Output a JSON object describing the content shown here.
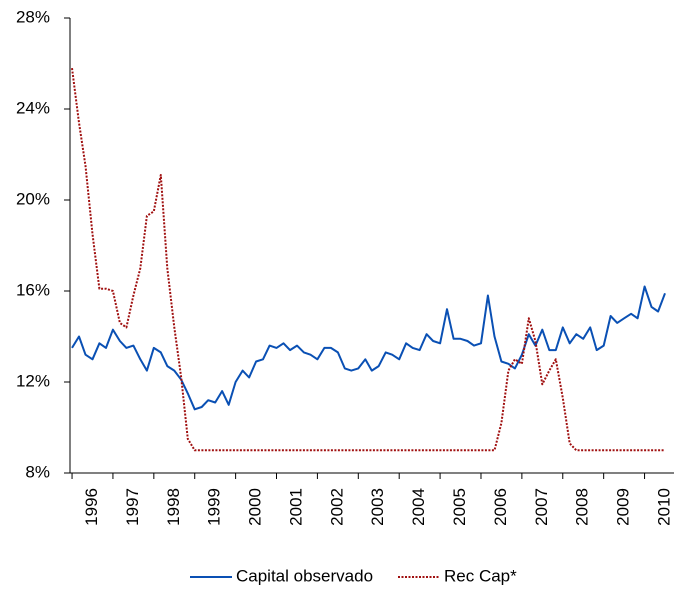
{
  "chart_data": {
    "type": "line",
    "x": [
      1996,
      1996.17,
      1996.33,
      1996.5,
      1996.67,
      1996.83,
      1997,
      1997.17,
      1997.33,
      1997.5,
      1997.67,
      1997.83,
      1998,
      1998.17,
      1998.33,
      1998.5,
      1998.67,
      1998.83,
      1999,
      1999.17,
      1999.33,
      1999.5,
      1999.67,
      1999.83,
      2000,
      2000.17,
      2000.33,
      2000.5,
      2000.67,
      2000.83,
      2001,
      2001.17,
      2001.33,
      2001.5,
      2001.67,
      2001.83,
      2002,
      2002.17,
      2002.33,
      2002.5,
      2002.67,
      2002.83,
      2003,
      2003.17,
      2003.33,
      2003.5,
      2003.67,
      2003.83,
      2004,
      2004.17,
      2004.33,
      2004.5,
      2004.67,
      2004.83,
      2005,
      2005.17,
      2005.33,
      2005.5,
      2005.67,
      2005.83,
      2006,
      2006.17,
      2006.33,
      2006.5,
      2006.67,
      2006.83,
      2007,
      2007.17,
      2007.33,
      2007.5,
      2007.67,
      2007.83,
      2008,
      2008.17,
      2008.33,
      2008.5,
      2008.67,
      2008.83,
      2009,
      2009.17,
      2009.33,
      2009.5,
      2009.67,
      2009.83,
      2010,
      2010.17,
      2010.33,
      2010.5
    ],
    "series": [
      {
        "name": "Capital observado",
        "color": "#0a50b4",
        "dash": false,
        "values": [
          13.5,
          14.0,
          13.2,
          13.0,
          13.7,
          13.5,
          14.3,
          13.8,
          13.5,
          13.6,
          13.0,
          12.5,
          13.5,
          13.3,
          12.7,
          12.5,
          12.1,
          11.5,
          10.8,
          10.9,
          11.2,
          11.1,
          11.6,
          11.0,
          12.0,
          12.5,
          12.2,
          12.9,
          13.0,
          13.6,
          13.5,
          13.7,
          13.4,
          13.6,
          13.3,
          13.2,
          13.0,
          13.5,
          13.5,
          13.3,
          12.6,
          12.5,
          12.6,
          13.0,
          12.5,
          12.7,
          13.3,
          13.2,
          13.0,
          13.7,
          13.5,
          13.4,
          14.1,
          13.8,
          13.7,
          15.2,
          13.9,
          13.9,
          13.8,
          13.6,
          13.7,
          15.8,
          14.0,
          12.9,
          12.8,
          12.6,
          13.2,
          14.1,
          13.6,
          14.3,
          13.4,
          13.4,
          14.4,
          13.7,
          14.1,
          13.9,
          14.4,
          13.4,
          13.6,
          14.9,
          14.6,
          14.8,
          15.0,
          14.8,
          16.2,
          15.3,
          15.1,
          15.9
        ]
      },
      {
        "name": "Rec Cap*",
        "color": "#a01010",
        "dash": true,
        "values": [
          25.8,
          23.4,
          21.5,
          18.5,
          16.1,
          16.1,
          16.0,
          14.6,
          14.4,
          15.8,
          17.0,
          19.3,
          19.5,
          21.1,
          17.0,
          14.4,
          12.2,
          9.5,
          9,
          9,
          9,
          9,
          9,
          9,
          9,
          9,
          9,
          9,
          9,
          9,
          9,
          9,
          9,
          9,
          9,
          9,
          9,
          9,
          9,
          9,
          9,
          9,
          9,
          9,
          9,
          9,
          9,
          9,
          9,
          9,
          9,
          9,
          9,
          9,
          9,
          9,
          9,
          9,
          9,
          9,
          9,
          9,
          9,
          10.2,
          12.5,
          13.0,
          12.8,
          14.8,
          13.8,
          11.9,
          12.5,
          13.0,
          11.3,
          9.3,
          9,
          9,
          9,
          9,
          9,
          9,
          9,
          9,
          9,
          9,
          9,
          9,
          9,
          9
        ]
      }
    ],
    "xlim": [
      1995.95,
      2010.72
    ],
    "xticks": [
      1996,
      1997,
      1998,
      1999,
      2000,
      2001,
      2002,
      2003,
      2004,
      2005,
      2006,
      2007,
      2008,
      2009,
      2010
    ],
    "ylim": [
      8,
      28
    ],
    "yticks": [
      {
        "value": 8,
        "label": "8%"
      },
      {
        "value": 12,
        "label": "12%"
      },
      {
        "value": 16,
        "label": "16%"
      },
      {
        "value": 20,
        "label": "20%"
      },
      {
        "value": 24,
        "label": "24%"
      },
      {
        "value": 28,
        "label": "28%"
      }
    ]
  }
}
